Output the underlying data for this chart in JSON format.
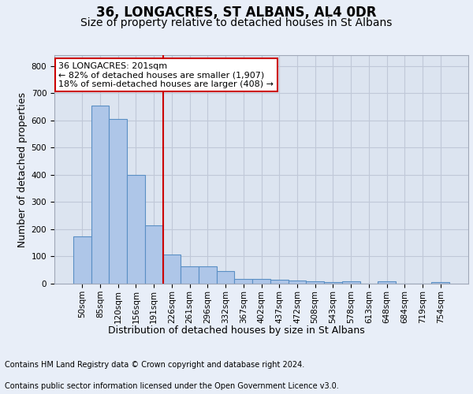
{
  "title": "36, LONGACRES, ST ALBANS, AL4 0DR",
  "subtitle": "Size of property relative to detached houses in St Albans",
  "xlabel": "Distribution of detached houses by size in St Albans",
  "ylabel": "Number of detached properties",
  "categories": [
    "50sqm",
    "85sqm",
    "120sqm",
    "156sqm",
    "191sqm",
    "226sqm",
    "261sqm",
    "296sqm",
    "332sqm",
    "367sqm",
    "402sqm",
    "437sqm",
    "472sqm",
    "508sqm",
    "543sqm",
    "578sqm",
    "613sqm",
    "648sqm",
    "684sqm",
    "719sqm",
    "754sqm"
  ],
  "values": [
    175,
    655,
    605,
    400,
    215,
    107,
    65,
    65,
    45,
    18,
    17,
    14,
    12,
    8,
    7,
    8,
    0,
    8,
    0,
    0,
    6
  ],
  "bar_color": "#aec6e8",
  "bar_edge_color": "#5a8fc4",
  "bar_linewidth": 0.8,
  "vline_x": 4.5,
  "vline_color": "#cc0000",
  "annotation_text_line1": "36 LONGACRES: 201sqm",
  "annotation_text_line2": "← 82% of detached houses are smaller (1,907)",
  "annotation_text_line3": "18% of semi-detached houses are larger (408) →",
  "annotation_box_color": "#cc0000",
  "ylim": [
    0,
    840
  ],
  "yticks": [
    0,
    100,
    200,
    300,
    400,
    500,
    600,
    700,
    800
  ],
  "grid_color": "#c0c8d8",
  "background_color": "#e8eef8",
  "plot_bg_color": "#dce4f0",
  "footer_line1": "Contains HM Land Registry data © Crown copyright and database right 2024.",
  "footer_line2": "Contains public sector information licensed under the Open Government Licence v3.0.",
  "title_fontsize": 12,
  "subtitle_fontsize": 10,
  "axis_label_fontsize": 9,
  "tick_fontsize": 7.5,
  "annotation_fontsize": 8,
  "footer_fontsize": 7
}
